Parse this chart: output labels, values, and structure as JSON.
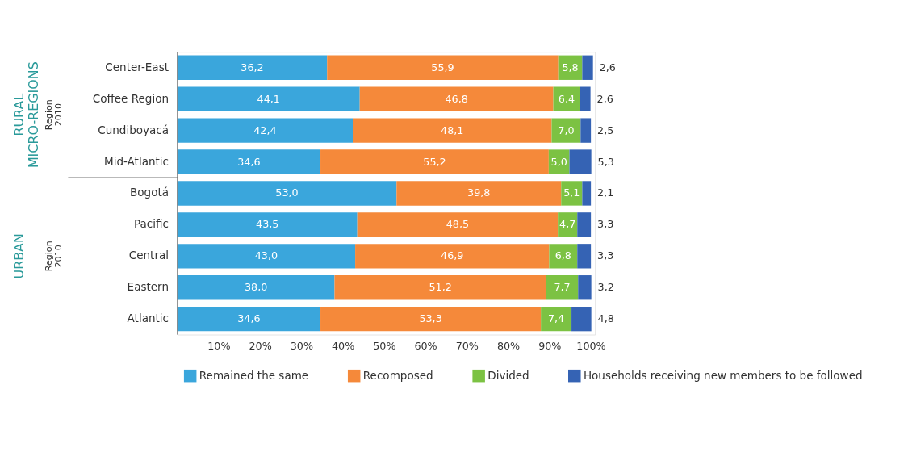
{
  "chart_data": {
    "type": "bar",
    "orientation": "horizontal",
    "stacked": true,
    "categories": [
      "Center-East",
      "Coffee Region",
      "Cundiboyacá",
      "Mid-Atlantic",
      "Bogotá",
      "Pacific",
      "Central",
      "Eastern",
      "Atlantic"
    ],
    "series": [
      {
        "name": "Remained the same",
        "color": "#3aa6dc",
        "values": [
          36.2,
          44.1,
          42.4,
          34.6,
          53.0,
          43.5,
          43.0,
          38.0,
          34.6
        ],
        "value_labels": [
          "36,2",
          "44,1",
          "42,4",
          "34,6",
          "53,0",
          "43,5",
          "43,0",
          "38,0",
          "34,6"
        ]
      },
      {
        "name": "Recomposed",
        "color": "#f5893a",
        "values": [
          55.9,
          46.8,
          48.1,
          55.2,
          39.8,
          48.5,
          46.9,
          51.2,
          53.3
        ],
        "value_labels": [
          "55,9",
          "46,8",
          "48,1",
          "55,2",
          "39,8",
          "48,5",
          "46,9",
          "51,2",
          "53,3"
        ]
      },
      {
        "name": "Divided",
        "color": "#7cc243",
        "values": [
          5.8,
          6.4,
          7.0,
          5.0,
          5.1,
          4.7,
          6.8,
          7.7,
          7.4
        ],
        "value_labels": [
          "5,8",
          "6,4",
          "7,0",
          "5,0",
          "5,1",
          "4,7",
          "6,8",
          "7,7",
          "7,4"
        ]
      },
      {
        "name": "Households receiving new members to be followed",
        "color": "#3563b4",
        "values": [
          2.6,
          2.6,
          2.5,
          5.3,
          2.1,
          3.3,
          3.3,
          3.2,
          4.8
        ],
        "value_labels": [
          "2,6",
          "2,6",
          "2,5",
          "5,3",
          "2,1",
          "3,3",
          "3,3",
          "3,2",
          "4,8"
        ]
      }
    ],
    "xlim": [
      0,
      101
    ],
    "xticks": [
      {
        "value": 10,
        "label": "10%"
      },
      {
        "value": 20,
        "label": "20%"
      },
      {
        "value": 30,
        "label": "30%"
      },
      {
        "value": 40,
        "label": "40%"
      },
      {
        "value": 50,
        "label": "50%"
      },
      {
        "value": 60,
        "label": "60%"
      },
      {
        "value": 70,
        "label": "70%"
      },
      {
        "value": 80,
        "label": "80%"
      },
      {
        "value": 90,
        "label": "90%"
      },
      {
        "value": 100,
        "label": "100%"
      }
    ],
    "annotations": [
      "RURAL MICRO-REGIONS",
      "Region 2010",
      "URBAN",
      "Region 2010"
    ],
    "grid": false,
    "legend": "bottom"
  }
}
